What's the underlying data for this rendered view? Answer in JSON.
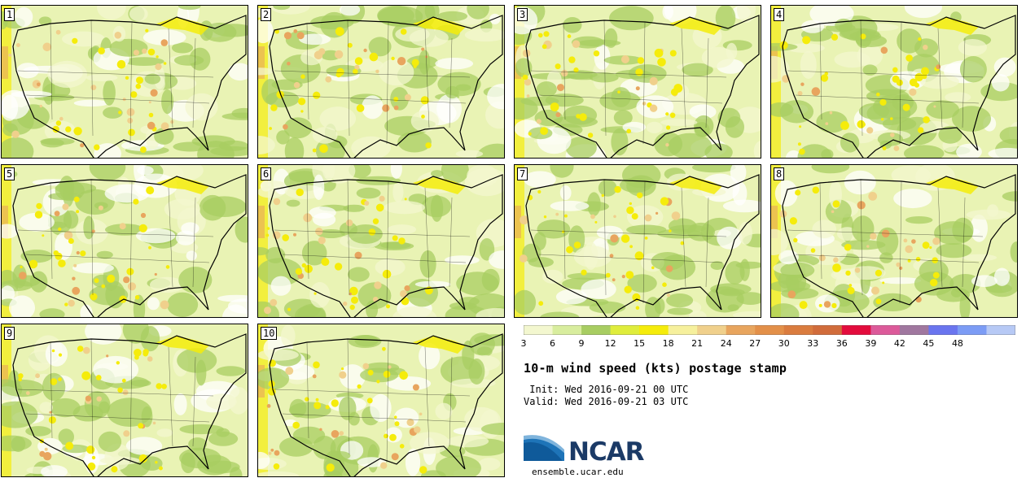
{
  "panels": [
    {
      "label": "1"
    },
    {
      "label": "2"
    },
    {
      "label": "3"
    },
    {
      "label": "4"
    },
    {
      "label": "5"
    },
    {
      "label": "6"
    },
    {
      "label": "7"
    },
    {
      "label": "8"
    },
    {
      "label": "9"
    },
    {
      "label": "10"
    }
  ],
  "colorbar": {
    "ticks": [
      "3",
      "6",
      "9",
      "12",
      "15",
      "18",
      "21",
      "24",
      "27",
      "30",
      "33",
      "36",
      "39",
      "42",
      "45",
      "48"
    ],
    "colors": [
      "#f3f7cf",
      "#d8ed9e",
      "#a8cd62",
      "#dfed3c",
      "#f5ec0b",
      "#f6f09d",
      "#f0d08c",
      "#e8a55e",
      "#e39049",
      "#da7c3f",
      "#d16c3b",
      "#e30c3d",
      "#dc5a9a",
      "#a0779f",
      "#6a75ef",
      "#7c9cf5",
      "#b7c9f5"
    ]
  },
  "title": "10-m wind speed (kts) postage stamp",
  "init": " Init: Wed 2016-09-21 00 UTC",
  "valid": "Valid: Wed 2016-09-21 03 UTC",
  "logo": {
    "name": "ncar-logo-icon",
    "text": "NCAR"
  },
  "website": "ensemble.ucar.edu",
  "colors": {
    "map_base": "#e9f3b4",
    "land_green": "#a8cd62",
    "light": "#f3f7cf",
    "yellow": "#f5ec0b"
  }
}
